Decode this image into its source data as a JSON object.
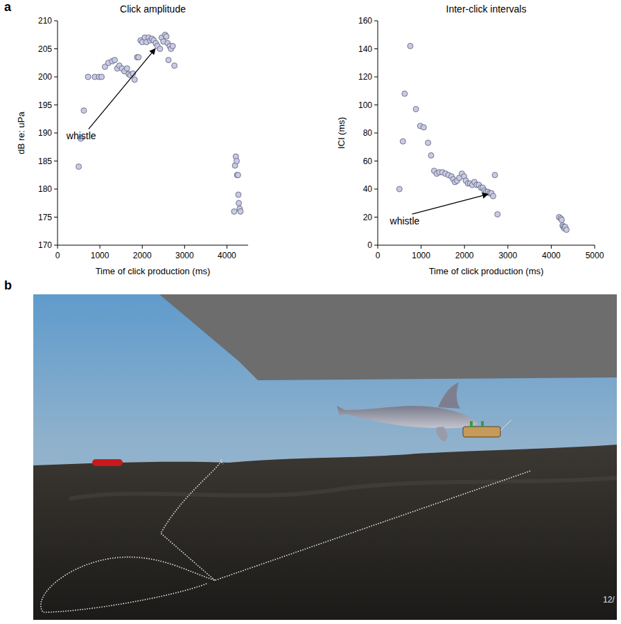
{
  "panel_labels": [
    "a",
    "b"
  ],
  "chart_data": [
    {
      "type": "scatter",
      "title": "Click amplitude",
      "x_label": "Time of click production (ms)",
      "y_label": "dB re: uPa",
      "xlim": [
        0,
        4500
      ],
      "ylim": [
        170,
        210
      ],
      "xticks": [
        0,
        1000,
        2000,
        3000,
        4000
      ],
      "yticks": [
        170,
        175,
        180,
        185,
        190,
        195,
        200,
        205,
        210
      ],
      "color": "#c9cbe6",
      "marker": "circle",
      "grid": false,
      "x": [
        500,
        550,
        620,
        720,
        880,
        980,
        1040,
        1120,
        1200,
        1290,
        1350,
        1410,
        1460,
        1520,
        1580,
        1640,
        1680,
        1720,
        1780,
        1820,
        1880,
        1910,
        1960,
        2000,
        2060,
        2100,
        2150,
        2190,
        2230,
        2270,
        2320,
        2360,
        2420,
        2460,
        2500,
        2540,
        2570,
        2600,
        2620,
        2650,
        2680,
        2720,
        2760,
        4170,
        4190,
        4210,
        4230,
        4240,
        4260,
        4270,
        4280,
        4300,
        4320
      ],
      "values": [
        184,
        189,
        194,
        200,
        200,
        200,
        200,
        201.8,
        202.5,
        202.8,
        203,
        201.5,
        202,
        201.5,
        201,
        201.5,
        200.5,
        200.3,
        200.6,
        199.5,
        203.5,
        203.5,
        206.5,
        206.2,
        207,
        206.2,
        207,
        206.5,
        206.8,
        206.5,
        206,
        205.5,
        205,
        207,
        206.3,
        207.5,
        207.2,
        206,
        203,
        205.5,
        205,
        205.5,
        202,
        176,
        184.2,
        185.8,
        185,
        182.5,
        182.5,
        179,
        177.5,
        176.5,
        176
      ],
      "annotations": [
        {
          "text": "whistle",
          "x": 2360,
          "y": 205.5
        }
      ]
    },
    {
      "type": "scatter",
      "title": "Inter-click intervals",
      "x_label": "Time of click production (ms)",
      "y_label": "ICI (ms)",
      "xlim": [
        0,
        5000
      ],
      "ylim": [
        0,
        160
      ],
      "xticks": [
        0,
        1000,
        2000,
        3000,
        4000,
        5000
      ],
      "yticks": [
        0,
        20,
        40,
        60,
        80,
        100,
        120,
        140,
        160
      ],
      "color": "#c9cbe6",
      "marker": "circle",
      "grid": false,
      "x": [
        500,
        580,
        620,
        750,
        880,
        980,
        1060,
        1160,
        1230,
        1300,
        1360,
        1420,
        1490,
        1560,
        1630,
        1700,
        1740,
        1780,
        1830,
        1880,
        1940,
        1990,
        2030,
        2080,
        2130,
        2180,
        2230,
        2280,
        2330,
        2380,
        2420,
        2460,
        2500,
        2540,
        2580,
        2620,
        2660,
        2700,
        2760,
        4180,
        4220,
        4240,
        4260,
        4280,
        4300,
        4320,
        4350
      ],
      "values": [
        40,
        74,
        108,
        142,
        97,
        85,
        84,
        73,
        64,
        53,
        51,
        52,
        52,
        51,
        50,
        49,
        47,
        45,
        46,
        48,
        51,
        49,
        46,
        44,
        44,
        43,
        45,
        43,
        43,
        41,
        41,
        39,
        38,
        38,
        37,
        37,
        35,
        50,
        22,
        20,
        19,
        18,
        14,
        13,
        12,
        13,
        11
      ],
      "annotations": [
        {
          "text": "whistle",
          "x": 2620,
          "y": 37
        }
      ]
    }
  ],
  "scene": {
    "timestamp": "12/"
  }
}
